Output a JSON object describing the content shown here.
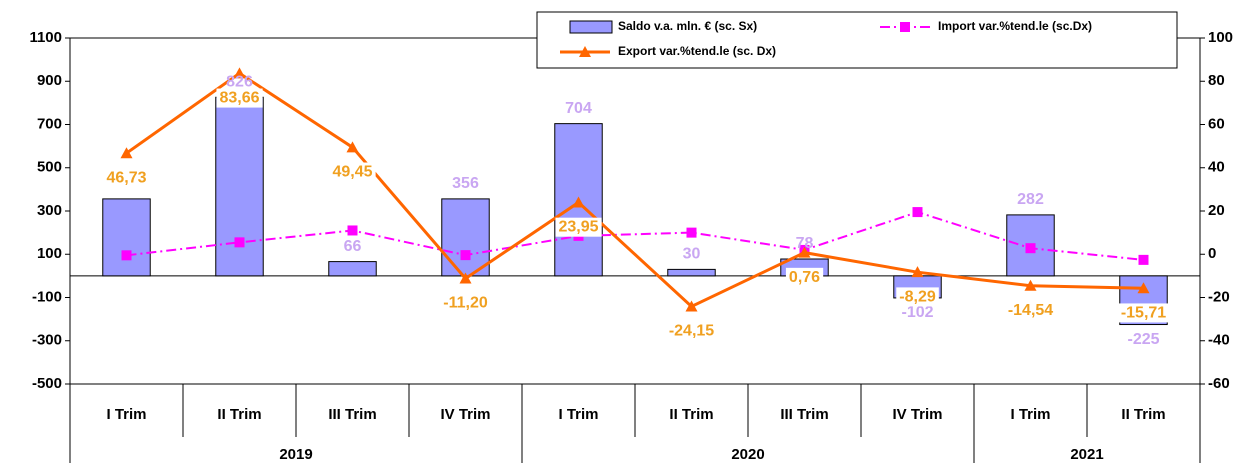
{
  "chart_data": {
    "type": "bar",
    "groups": [
      {
        "name": "2019",
        "categories": [
          "I Trim",
          "II Trim",
          "III Trim",
          "IV Trim"
        ]
      },
      {
        "name": "2020",
        "categories": [
          "I Trim",
          "II Trim",
          "III Trim",
          "IV Trim"
        ]
      },
      {
        "name": "2021",
        "categories": [
          "I Trim",
          "II Trim"
        ]
      }
    ],
    "ylim": [
      -500,
      1100
    ],
    "yticks": [
      -500,
      -300,
      -100,
      100,
      300,
      500,
      700,
      900,
      1100
    ],
    "y2lim": [
      -60,
      100
    ],
    "y2ticks": [
      -60,
      -40,
      -20,
      0,
      20,
      40,
      60,
      80,
      100
    ],
    "series": [
      {
        "name": "Saldo v.a. mln. € (sc. Sx)",
        "type": "bar",
        "axis": "y",
        "color": "#9999ff",
        "label_color": "#c9a6f2",
        "values": [
          356,
          826,
          66,
          356,
          704,
          30,
          78,
          -102,
          282,
          -225
        ],
        "value_labels": [
          null,
          "826",
          "66",
          "356",
          "704",
          "30",
          "78",
          "-102",
          "282",
          "-225"
        ]
      },
      {
        "name": "Import var.%tend.le (sc.Dx)",
        "type": "line",
        "axis": "y2",
        "color": "#ff00ff",
        "marker": "square",
        "dash": true,
        "values": [
          -0.5,
          5.5,
          11,
          -0.4,
          8.5,
          10,
          2,
          19.5,
          2.8,
          -2.6
        ]
      },
      {
        "name": "Export var.%tend.le (sc. Dx)",
        "type": "line",
        "axis": "y2",
        "color": "#ff6600",
        "marker": "triangle",
        "label_color": "#f0a020",
        "values": [
          46.73,
          83.66,
          49.45,
          -11.2,
          23.95,
          -24.15,
          0.76,
          -8.29,
          -14.54,
          -15.71
        ],
        "value_labels": [
          "46,73",
          "83,66",
          "49,45",
          "-11,20",
          "23,95",
          "-24,15",
          "0,76",
          "-8,29",
          "-14,54",
          "-15,71"
        ]
      }
    ]
  }
}
